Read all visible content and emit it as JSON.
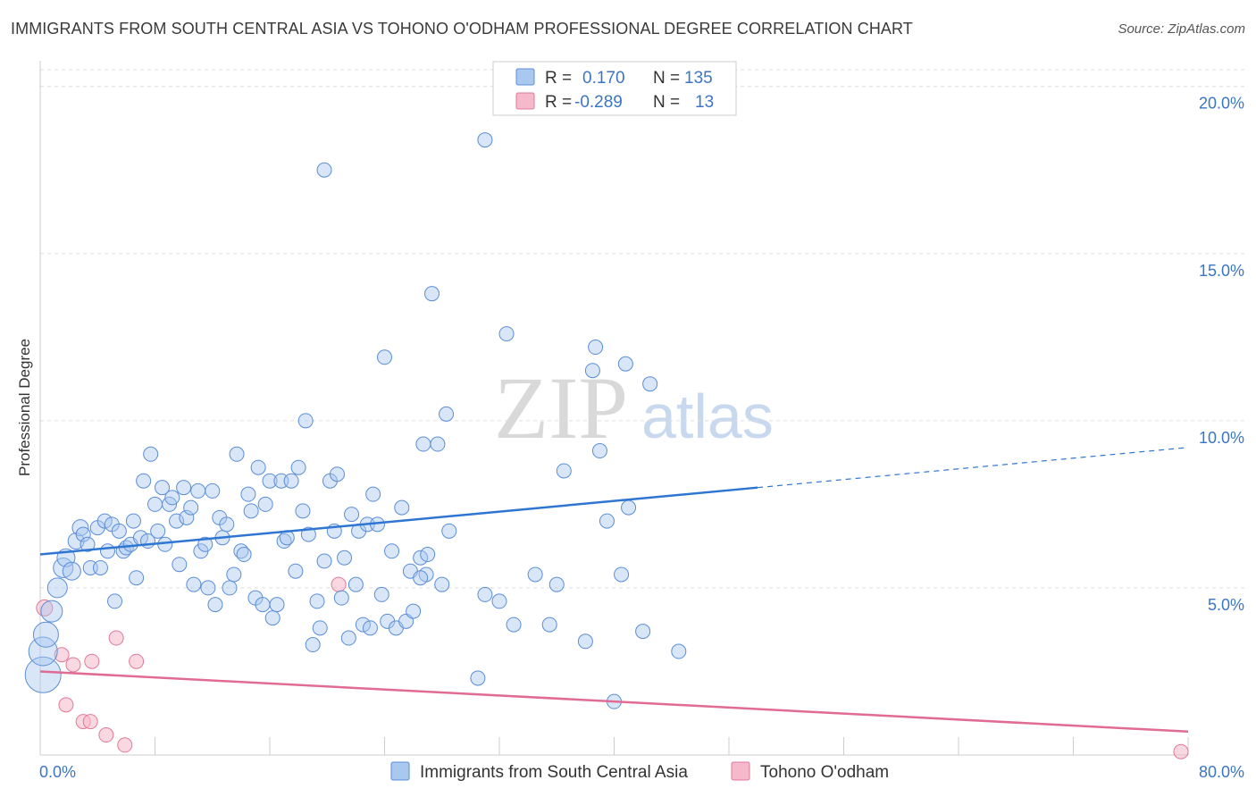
{
  "title": "IMMIGRANTS FROM SOUTH CENTRAL ASIA VS TOHONO O'ODHAM PROFESSIONAL DEGREE CORRELATION CHART",
  "source": "Source: ZipAtlas.com",
  "watermark": {
    "zip": "ZIP",
    "atlas": "atlas"
  },
  "colors": {
    "blue_fill": "#a9c8f0",
    "blue_stroke": "#5b8ed6",
    "blue_line": "#2f76d2",
    "pink_fill": "#f6b8cb",
    "pink_stroke": "#e07a9a",
    "pink_line": "#e06b95",
    "tick_text": "#3b76c4",
    "grid": "#dddddd"
  },
  "legend": {
    "rows": [
      {
        "r_label": "R =",
        "r_value": " 0.170",
        "n_label": "N =",
        "n_value": "135"
      },
      {
        "r_label": "R =",
        "r_value": "-0.289",
        "n_label": "N =",
        "n_value": " 13"
      }
    ]
  },
  "chart_data": {
    "type": "scatter",
    "title": "IMMIGRANTS FROM SOUTH CENTRAL ASIA VS TOHONO O'ODHAM PROFESSIONAL DEGREE CORRELATION CHART",
    "xlabel": "",
    "ylabel": "Professional Degree",
    "xlim": [
      0,
      80
    ],
    "ylim": [
      0,
      20.5
    ],
    "x_tick_labels": [
      "0.0%",
      "80.0%"
    ],
    "y_ticks": [
      5,
      10,
      15,
      20
    ],
    "y_tick_labels": [
      "5.0%",
      "10.0%",
      "15.0%",
      "20.0%"
    ],
    "grid": true,
    "legend_position": "top-center",
    "series": [
      {
        "name": "Immigrants from South Central Asia",
        "color": "blue",
        "R": 0.17,
        "N": 135,
        "trend": {
          "x0": 0,
          "y0": 6.0,
          "x_solid_end": 50,
          "x1": 80,
          "y1": 9.2
        },
        "points": [
          [
            0.2,
            2.4,
            20
          ],
          [
            0.2,
            3.1,
            16
          ],
          [
            0.4,
            3.6,
            14
          ],
          [
            0.8,
            4.3,
            12
          ],
          [
            1.2,
            5.0,
            11
          ],
          [
            1.6,
            5.6,
            11
          ],
          [
            1.8,
            5.9,
            10
          ],
          [
            2.2,
            5.5,
            10
          ],
          [
            2.5,
            6.4,
            9
          ],
          [
            2.8,
            6.8,
            9
          ],
          [
            3.0,
            6.6,
            8
          ],
          [
            3.3,
            6.3,
            8
          ],
          [
            3.5,
            5.6,
            8
          ],
          [
            4.0,
            6.8,
            8
          ],
          [
            4.2,
            5.6,
            8
          ],
          [
            4.5,
            7.0,
            8
          ],
          [
            4.7,
            6.1,
            8
          ],
          [
            5.0,
            6.9,
            8
          ],
          [
            5.2,
            4.6,
            8
          ],
          [
            5.5,
            6.7,
            8
          ],
          [
            5.8,
            6.1,
            8
          ],
          [
            6.0,
            6.2,
            8
          ],
          [
            6.3,
            6.3,
            8
          ],
          [
            6.5,
            7.0,
            8
          ],
          [
            6.7,
            5.3,
            8
          ],
          [
            7.0,
            6.5,
            8
          ],
          [
            7.2,
            8.2,
            8
          ],
          [
            7.5,
            6.4,
            8
          ],
          [
            7.7,
            9.0,
            8
          ],
          [
            8.0,
            7.5,
            8
          ],
          [
            8.2,
            6.7,
            8
          ],
          [
            8.5,
            8.0,
            8
          ],
          [
            8.7,
            6.3,
            8
          ],
          [
            9.0,
            7.5,
            8
          ],
          [
            9.2,
            7.7,
            8
          ],
          [
            9.5,
            7.0,
            8
          ],
          [
            9.7,
            5.7,
            8
          ],
          [
            10.0,
            8.0,
            8
          ],
          [
            10.2,
            7.1,
            8
          ],
          [
            10.5,
            7.4,
            8
          ],
          [
            10.7,
            5.1,
            8
          ],
          [
            11.0,
            7.9,
            8
          ],
          [
            11.2,
            6.1,
            8
          ],
          [
            11.5,
            6.3,
            8
          ],
          [
            11.7,
            5.0,
            8
          ],
          [
            12.0,
            7.9,
            8
          ],
          [
            12.2,
            4.5,
            8
          ],
          [
            12.5,
            7.1,
            8
          ],
          [
            12.7,
            6.5,
            8
          ],
          [
            13.0,
            6.9,
            8
          ],
          [
            13.2,
            5.0,
            8
          ],
          [
            13.5,
            5.4,
            8
          ],
          [
            13.7,
            9.0,
            8
          ],
          [
            14.0,
            6.1,
            8
          ],
          [
            14.2,
            6.0,
            8
          ],
          [
            14.5,
            7.8,
            8
          ],
          [
            14.7,
            7.3,
            8
          ],
          [
            15.0,
            4.7,
            8
          ],
          [
            15.2,
            8.6,
            8
          ],
          [
            15.5,
            4.5,
            8
          ],
          [
            15.7,
            7.5,
            8
          ],
          [
            16.0,
            8.2,
            8
          ],
          [
            16.2,
            4.1,
            8
          ],
          [
            16.5,
            4.5,
            8
          ],
          [
            16.8,
            8.2,
            8
          ],
          [
            17.0,
            6.4,
            8
          ],
          [
            17.2,
            6.5,
            8
          ],
          [
            17.5,
            8.2,
            8
          ],
          [
            17.8,
            5.5,
            8
          ],
          [
            18.0,
            8.6,
            8
          ],
          [
            18.3,
            7.3,
            8
          ],
          [
            18.5,
            10.0,
            8
          ],
          [
            18.7,
            6.6,
            8
          ],
          [
            19.0,
            3.3,
            8
          ],
          [
            19.3,
            4.6,
            8
          ],
          [
            19.5,
            3.8,
            8
          ],
          [
            19.8,
            5.8,
            8
          ],
          [
            20.2,
            8.2,
            8
          ],
          [
            20.5,
            6.7,
            8
          ],
          [
            20.7,
            8.4,
            8
          ],
          [
            21.0,
            4.7,
            8
          ],
          [
            21.2,
            5.9,
            8
          ],
          [
            21.5,
            3.5,
            8
          ],
          [
            21.7,
            7.2,
            8
          ],
          [
            22.0,
            5.1,
            8
          ],
          [
            22.2,
            6.7,
            8
          ],
          [
            22.5,
            3.9,
            8
          ],
          [
            22.8,
            6.9,
            8
          ],
          [
            23.0,
            3.8,
            8
          ],
          [
            23.2,
            7.8,
            8
          ],
          [
            23.5,
            6.9,
            8
          ],
          [
            23.8,
            4.8,
            8
          ],
          [
            24.0,
            11.9,
            8
          ],
          [
            24.2,
            4.0,
            8
          ],
          [
            24.5,
            6.1,
            8
          ],
          [
            24.8,
            3.8,
            8
          ],
          [
            25.2,
            7.4,
            8
          ],
          [
            25.5,
            4.0,
            8
          ],
          [
            25.8,
            5.5,
            8
          ],
          [
            26.0,
            4.3,
            8
          ],
          [
            26.5,
            5.9,
            8
          ],
          [
            26.7,
            9.3,
            8
          ],
          [
            26.9,
            5.4,
            8
          ],
          [
            27.3,
            13.8,
            8
          ],
          [
            27.7,
            9.3,
            8
          ],
          [
            28.0,
            5.1,
            8
          ],
          [
            28.3,
            10.2,
            8
          ],
          [
            28.5,
            6.7,
            8
          ],
          [
            30.5,
            2.3,
            8
          ],
          [
            31.0,
            4.8,
            8
          ],
          [
            32.0,
            4.6,
            8
          ],
          [
            32.5,
            12.6,
            8
          ],
          [
            33.0,
            3.9,
            8
          ],
          [
            34.5,
            5.4,
            8
          ],
          [
            35.5,
            3.9,
            8
          ],
          [
            36.0,
            5.1,
            8
          ],
          [
            36.5,
            8.5,
            8
          ],
          [
            38.0,
            3.4,
            8
          ],
          [
            38.5,
            11.5,
            8
          ],
          [
            38.7,
            12.2,
            8
          ],
          [
            39.0,
            9.1,
            8
          ],
          [
            39.5,
            7.0,
            8
          ],
          [
            40.0,
            1.6,
            8
          ],
          [
            40.5,
            5.4,
            8
          ],
          [
            40.8,
            11.7,
            8
          ],
          [
            41.0,
            7.4,
            8
          ],
          [
            42.0,
            3.7,
            8
          ],
          [
            42.5,
            11.1,
            8
          ],
          [
            44.5,
            3.1,
            8
          ],
          [
            31.0,
            18.4,
            8
          ],
          [
            19.8,
            17.5,
            8
          ],
          [
            26.5,
            5.3,
            8
          ],
          [
            27.0,
            6.0,
            8
          ]
        ]
      },
      {
        "name": "Tohono O'odham",
        "color": "pink",
        "R": -0.289,
        "N": 13,
        "trend": {
          "x0": 0,
          "y0": 2.5,
          "x1": 80,
          "y1": 0.7
        },
        "points": [
          [
            0.3,
            4.4,
            9
          ],
          [
            1.5,
            3.0,
            8
          ],
          [
            1.8,
            1.5,
            8
          ],
          [
            2.3,
            2.7,
            8
          ],
          [
            3.0,
            1.0,
            8
          ],
          [
            3.5,
            1.0,
            8
          ],
          [
            3.6,
            2.8,
            8
          ],
          [
            4.6,
            0.6,
            8
          ],
          [
            5.3,
            3.5,
            8
          ],
          [
            5.9,
            0.3,
            8
          ],
          [
            6.7,
            2.8,
            8
          ],
          [
            20.8,
            5.1,
            8
          ],
          [
            79.5,
            0.1,
            8
          ]
        ]
      }
    ]
  }
}
